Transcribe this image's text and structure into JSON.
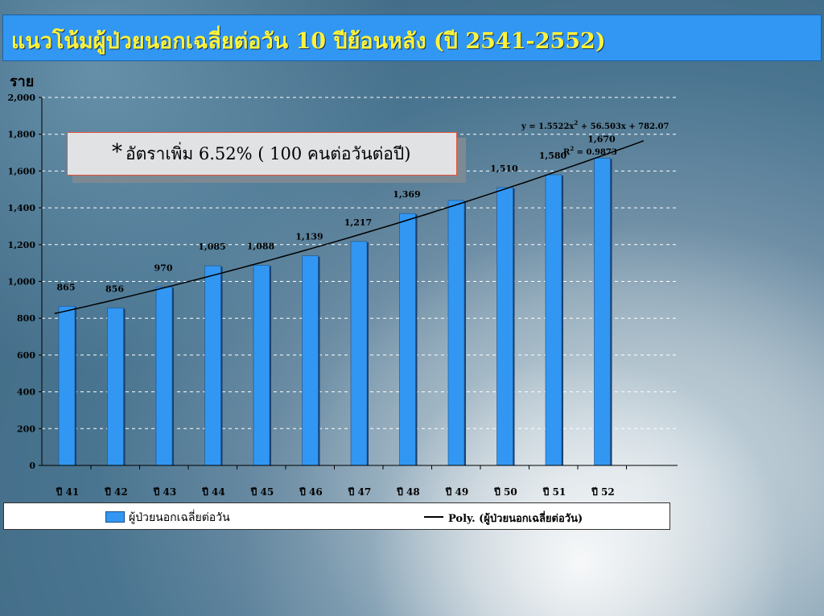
{
  "slide": {
    "title": "แนวโน้มผู้ป่วยนอกเฉลี่ยต่อวัน 10 ปีย้อนหลัง (ปี 2541-2552)",
    "unit_label": "ราย",
    "callout": {
      "star": "*",
      "text": "อัตราเพิ่ม 6.52% ( 100 คนต่อวันต่อปี)"
    },
    "legend": {
      "series_label": "ผู้ป่วยนอกเฉลี่ยต่อวัน",
      "trend_label": "Poly. (ผู้ป่วยนอกเฉลี่ยต่อวัน)"
    },
    "trend_equation": "y = 1.5522x",
    "trend_equation_sup": "2",
    "trend_equation_rest": " + 56.503x + 782.07",
    "trend_r2_prefix": "R",
    "trend_r2_sup": "2",
    "trend_r2_rest": " = 0.9873"
  },
  "colors": {
    "bar": "#3197f2",
    "bar_edge": "#1a3f6e",
    "title_text": "#fff23a",
    "title_bg": "#3197f2"
  },
  "chart_data": {
    "type": "bar",
    "categories": [
      "ปี 41",
      "ปี 42",
      "ปี 43",
      "ปี 44",
      "ปี 45",
      "ปี 46",
      "ปี 47",
      "ปี 48",
      "ปี 49",
      "ปี 50",
      "ปี 51",
      "ปี 52"
    ],
    "series": [
      {
        "name": "ผู้ป่วยนอกเฉลี่ยต่อวัน",
        "values": [
          865,
          856,
          970,
          1085,
          1088,
          1139,
          1217,
          1369,
          1440,
          1510,
          1580,
          1670
        ],
        "data_labels": [
          "865",
          "856",
          "970",
          "1,085",
          "1,088",
          "1,139",
          "1,217",
          "1,369",
          "",
          "1,510",
          "1,580",
          "1,670"
        ]
      }
    ],
    "trendline": {
      "name": "Poly. (ผู้ป่วยนอกเฉลี่ยต่อวัน)",
      "type": "polynomial",
      "coefficients": [
        1.5522,
        56.503,
        782.07
      ],
      "r2": 0.9873
    },
    "ylim": [
      0,
      2000
    ],
    "yticks": [
      0,
      200,
      400,
      600,
      800,
      1000,
      1200,
      1400,
      1600,
      1800,
      2000
    ],
    "ytick_labels": [
      "0",
      "200",
      "400",
      "600",
      "800",
      "1,000",
      "1,200",
      "1,400",
      "1,600",
      "1,800",
      "2,000"
    ],
    "ylabel": "ราย",
    "grid": true,
    "legend_position": "bottom"
  }
}
